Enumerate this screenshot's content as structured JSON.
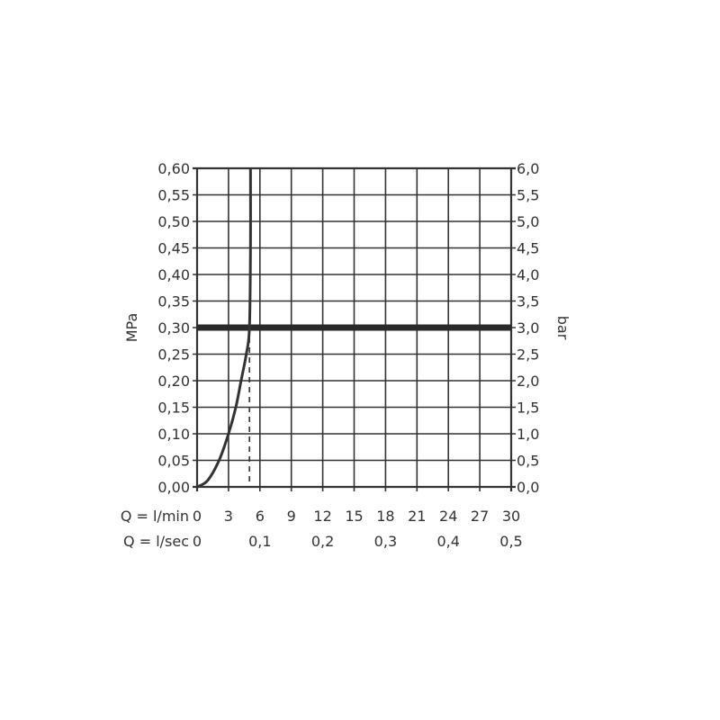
{
  "chart_data": {
    "type": "line",
    "xlabel": "Q = l/min",
    "xlabel2": "Q = l/sec",
    "ylabel": "MPa",
    "ylabel_right": "bar",
    "xlim": [
      0,
      30
    ],
    "ylim": [
      0,
      0.6
    ],
    "ylim_right": [
      0,
      6
    ],
    "grid": true,
    "x_ticks": [
      "0",
      "3",
      "6",
      "9",
      "12",
      "15",
      "18",
      "21",
      "24",
      "27",
      "30"
    ],
    "x_tick_values": [
      0,
      3,
      6,
      9,
      12,
      15,
      18,
      21,
      24,
      27,
      30
    ],
    "x2_ticks": [
      "0",
      "0,1",
      "0,2",
      "0,3",
      "0,4",
      "0,5"
    ],
    "x2_tick_values_lmin": [
      0,
      6,
      12,
      18,
      24,
      30
    ],
    "y_ticks": [
      "0,00",
      "0,05",
      "0,10",
      "0,15",
      "0,20",
      "0,25",
      "0,30",
      "0,35",
      "0,40",
      "0,45",
      "0,50",
      "0,55",
      "0,60"
    ],
    "y_tick_values": [
      0,
      0.05,
      0.1,
      0.15,
      0.2,
      0.25,
      0.3,
      0.35,
      0.4,
      0.45,
      0.5,
      0.55,
      0.6
    ],
    "y_right_ticks": [
      "0,0",
      "0,5",
      "1,0",
      "1,5",
      "2,0",
      "2,5",
      "3,0",
      "3,5",
      "4,0",
      "4,5",
      "5,0",
      "5,5",
      "6,0"
    ],
    "series": [
      {
        "x": [
          0,
          1.0,
          2.1,
          3.0,
          3.7,
          4.2,
          4.7,
          5.0,
          5.1,
          5.1
        ],
        "y": [
          0,
          0.012,
          0.05,
          0.1,
          0.15,
          0.2,
          0.25,
          0.3,
          0.45,
          0.6
        ]
      }
    ],
    "reference_line_y": 0.3,
    "dashed_line_x": 5.0,
    "colors": {
      "line": "#333333",
      "grid": "#333333"
    }
  }
}
